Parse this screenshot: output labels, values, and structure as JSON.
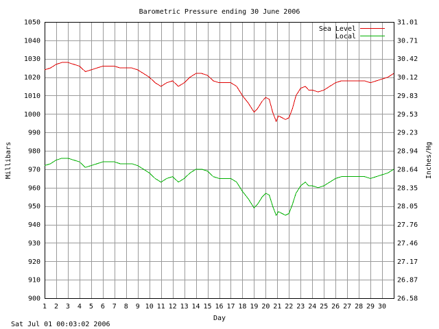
{
  "chart_data": {
    "type": "line",
    "title": "Barometric Pressure ending 30 June 2006",
    "xlabel": "Day",
    "ylabel": "Millibars",
    "y2label": "Inches/Hg",
    "timestamp": "Sat Jul 01 00:03:02 2006",
    "xlim": [
      1,
      31
    ],
    "ylim": [
      900,
      1050
    ],
    "x_ticks": [
      "1",
      "2",
      "3",
      "4",
      "5",
      "6",
      "7",
      "8",
      "9",
      "10",
      "11",
      "12",
      "13",
      "14",
      "15",
      "16",
      "17",
      "18",
      "19",
      "20",
      "21",
      "22",
      "23",
      "24",
      "25",
      "26",
      "27",
      "28",
      "29",
      "30"
    ],
    "y_ticks": [
      900,
      910,
      920,
      930,
      940,
      950,
      960,
      970,
      980,
      990,
      1000,
      1010,
      1020,
      1030,
      1040,
      1050
    ],
    "y2_ticks": [
      "26.58",
      "26.87",
      "27.17",
      "27.46",
      "27.76",
      "28.05",
      "28.35",
      "28.64",
      "28.94",
      "29.23",
      "29.53",
      "29.83",
      "30.12",
      "30.42",
      "30.71",
      "31.01"
    ],
    "grid": true,
    "legend_position": "top-right",
    "series": [
      {
        "name": "Sea Level",
        "color": "#e00000",
        "x": [
          1.0,
          1.5,
          2.0,
          2.5,
          3.0,
          3.5,
          4.0,
          4.5,
          5.0,
          5.5,
          6.0,
          6.5,
          7.0,
          7.5,
          8.0,
          8.5,
          9.0,
          9.5,
          10.0,
          10.5,
          11.0,
          11.5,
          12.0,
          12.5,
          13.0,
          13.5,
          14.0,
          14.5,
          15.0,
          15.5,
          16.0,
          16.5,
          17.0,
          17.5,
          18.0,
          18.5,
          19.0,
          19.3,
          19.7,
          20.0,
          20.3,
          20.6,
          20.9,
          21.1,
          21.4,
          21.7,
          22.0,
          22.3,
          22.6,
          23.0,
          23.4,
          23.7,
          24.0,
          24.5,
          25.0,
          25.5,
          26.0,
          26.5,
          27.0,
          27.5,
          28.0,
          28.5,
          29.0,
          29.5,
          30.0,
          30.5,
          31.0
        ],
        "values": [
          1024,
          1025,
          1027,
          1028,
          1028,
          1027,
          1026,
          1023,
          1024,
          1025,
          1026,
          1026,
          1026,
          1025,
          1025,
          1025,
          1024,
          1022,
          1020,
          1017,
          1015,
          1017,
          1018,
          1015,
          1017,
          1020,
          1022,
          1022,
          1021,
          1018,
          1017,
          1017,
          1017,
          1015,
          1010,
          1006,
          1001,
          1003,
          1007,
          1009,
          1008,
          1001,
          996,
          999,
          998,
          997,
          998,
          1003,
          1010,
          1014,
          1015,
          1013,
          1013,
          1012,
          1013,
          1015,
          1017,
          1018,
          1018,
          1018,
          1018,
          1018,
          1017,
          1018,
          1019,
          1020,
          1022
        ]
      },
      {
        "name": "Local",
        "color": "#00b000",
        "x": [
          1.0,
          1.5,
          2.0,
          2.5,
          3.0,
          3.5,
          4.0,
          4.5,
          5.0,
          5.5,
          6.0,
          6.5,
          7.0,
          7.5,
          8.0,
          8.5,
          9.0,
          9.5,
          10.0,
          10.5,
          11.0,
          11.5,
          12.0,
          12.5,
          13.0,
          13.5,
          14.0,
          14.5,
          15.0,
          15.5,
          16.0,
          16.5,
          17.0,
          17.5,
          18.0,
          18.5,
          19.0,
          19.3,
          19.7,
          20.0,
          20.3,
          20.6,
          20.9,
          21.1,
          21.4,
          21.7,
          22.0,
          22.3,
          22.6,
          23.0,
          23.4,
          23.7,
          24.0,
          24.5,
          25.0,
          25.5,
          26.0,
          26.5,
          27.0,
          27.5,
          28.0,
          28.5,
          29.0,
          29.5,
          30.0,
          30.5,
          31.0
        ],
        "values": [
          972,
          973,
          975,
          976,
          976,
          975,
          974,
          971,
          972,
          973,
          974,
          974,
          974,
          973,
          973,
          973,
          972,
          970,
          968,
          965,
          963,
          965,
          966,
          963,
          965,
          968,
          970,
          970,
          969,
          966,
          965,
          965,
          965,
          963,
          958,
          954,
          949,
          951,
          955,
          957,
          956,
          950,
          945,
          947,
          946,
          945,
          946,
          951,
          957,
          961,
          963,
          961,
          961,
          960,
          961,
          963,
          965,
          966,
          966,
          966,
          966,
          966,
          965,
          966,
          967,
          968,
          970
        ]
      }
    ]
  }
}
